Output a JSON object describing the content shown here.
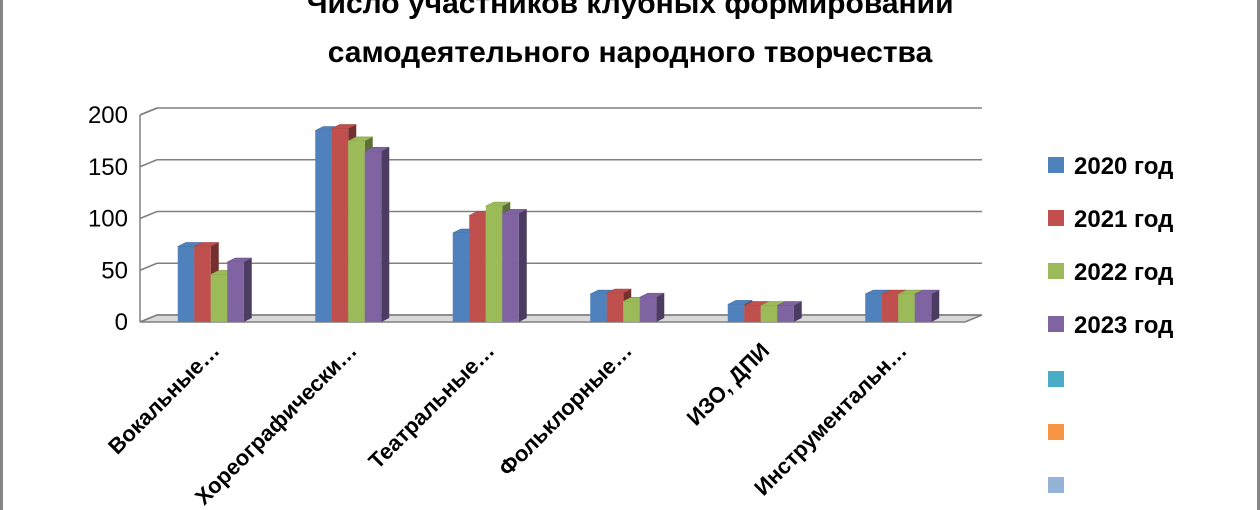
{
  "chart_data": {
    "type": "bar",
    "title_lines": [
      "Число участников клубных формирований",
      "самодеятельного народного творчества"
    ],
    "categories": [
      "Вокальные…",
      "Хореографически…",
      "Театральные…",
      "Фольклорные…",
      "ИЗО, ДПИ",
      "Инструментальн…"
    ],
    "series": [
      {
        "name": "2020 год",
        "values": [
          73,
          185,
          86,
          27,
          17,
          27
        ],
        "color": "#4F81BD"
      },
      {
        "name": "2021 год",
        "values": [
          73,
          187,
          103,
          28,
          16,
          27
        ],
        "color": "#C0504D"
      },
      {
        "name": "2022 год",
        "values": [
          46,
          175,
          112,
          20,
          16,
          27
        ],
        "color": "#9BBB59"
      },
      {
        "name": "2023 год",
        "values": [
          58,
          165,
          105,
          24,
          16,
          27
        ],
        "color": "#8064A2"
      }
    ],
    "extra_legend_colors": [
      "#4BACC6",
      "#F79646",
      "#95B3D7"
    ],
    "yticks": [
      "0",
      "50",
      "100",
      "150",
      "200"
    ],
    "ylim": [
      0,
      200
    ],
    "grid": true,
    "legend_position": "right",
    "three_d": true
  }
}
